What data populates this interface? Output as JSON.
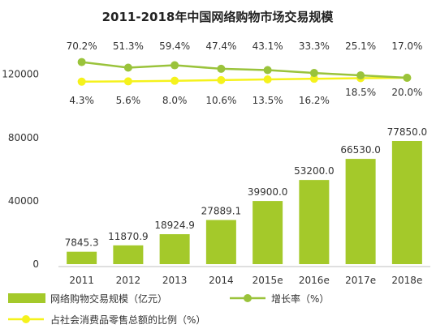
{
  "chart_data": {
    "type": "bar",
    "title": "2011-2018年中国网络购物市场交易规模",
    "categories": [
      "2011",
      "2012",
      "2013",
      "2014",
      "2015e",
      "2016e",
      "2017e",
      "2018e"
    ],
    "ylim": [
      0,
      140000
    ],
    "yticks": [
      "0",
      "40000",
      "80000",
      "120000"
    ],
    "grid": false,
    "legend_position": "bottom",
    "bars": {
      "name": "网络购物交易规模（亿元）",
      "values": [
        7845.3,
        11870.9,
        18924.9,
        27889.1,
        39900.0,
        53200.0,
        66530.0,
        77850.0
      ],
      "labels": [
        "7845.3",
        "11870.9",
        "18924.9",
        "27889.1",
        "39900.0",
        "53200.0",
        "66530.0",
        "77850.0"
      ],
      "color": "#a4c92a"
    },
    "lines": [
      {
        "name": "增长率（%）",
        "values": [
          70.2,
          51.3,
          59.4,
          47.4,
          43.1,
          33.3,
          25.1,
          17.0
        ],
        "labels": [
          "70.2%",
          "51.3%",
          "59.4%",
          "47.4%",
          "43.1%",
          "33.3%",
          "25.1%",
          "17.0%"
        ],
        "color": "#9ac33b"
      },
      {
        "name": "占社会消费品零售总额的比例（%）",
        "values": [
          4.3,
          5.6,
          8.0,
          10.6,
          13.5,
          16.2,
          18.5,
          20.0
        ],
        "labels": [
          "4.3%",
          "5.6%",
          "8.0%",
          "10.6%",
          "13.5%",
          "16.2%",
          "18.5%",
          "20.0%"
        ],
        "color": "#f5f21c"
      }
    ]
  }
}
